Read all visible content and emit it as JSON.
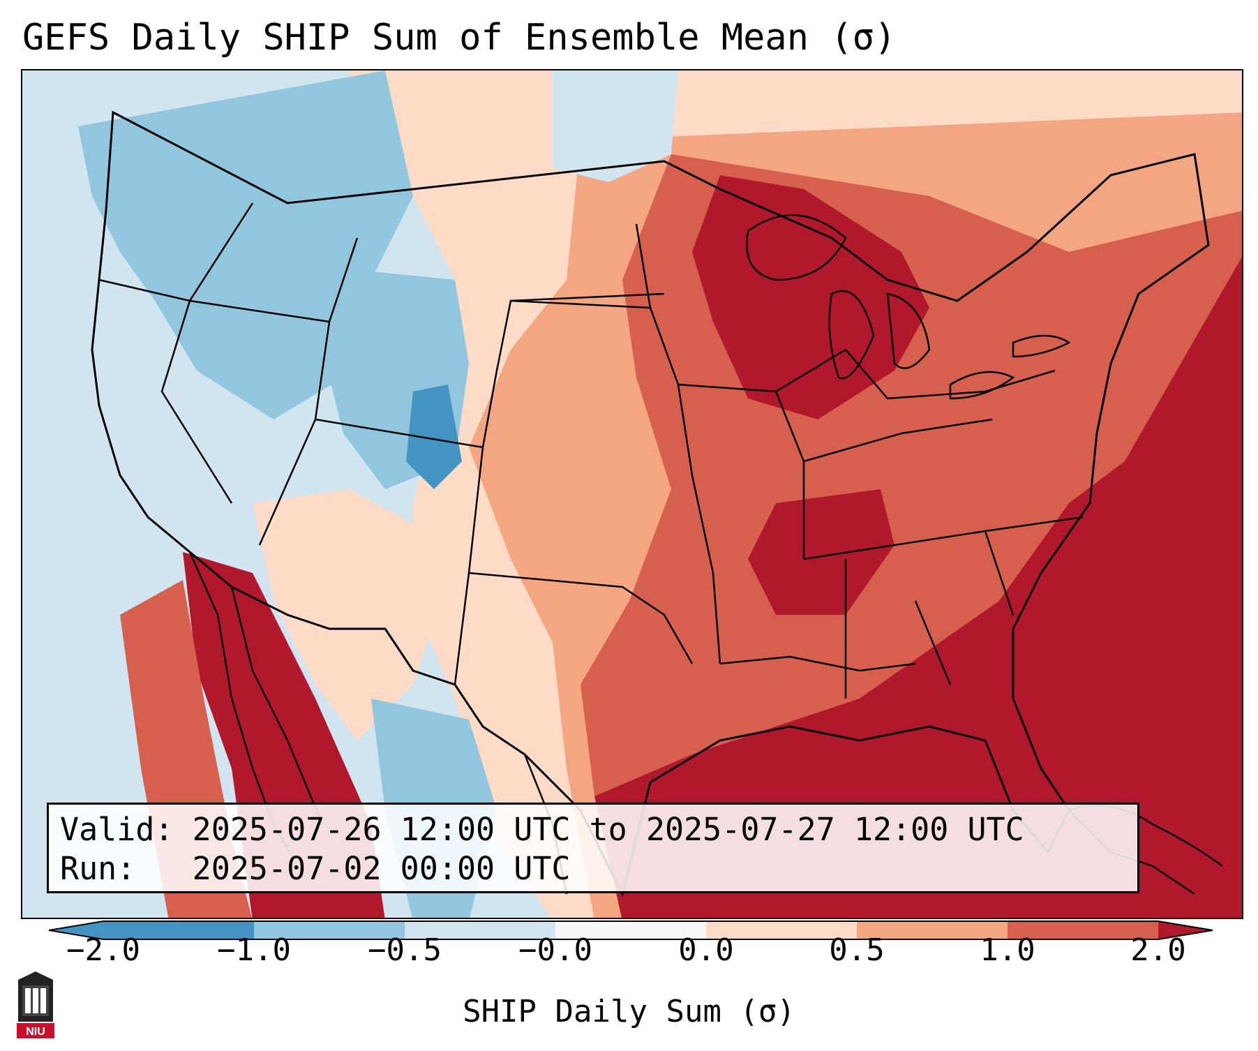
{
  "title": "GEFS Daily SHIP Sum of Ensemble Mean (σ)",
  "info": {
    "valid_label": "Valid:",
    "valid_value": "2025-07-26 12:00 UTC to 2025-07-27 12:00 UTC",
    "run_label": "Run:",
    "run_value": "2025-07-02 00:00 UTC"
  },
  "colorbar": {
    "label": "SHIP Daily Sum (σ)",
    "ticks": [
      "−2.0",
      "−1.0",
      "−0.5",
      "−0.0",
      "0.0",
      "0.5",
      "1.0",
      "2.0"
    ],
    "colors": [
      "#4393c3",
      "#92c5de",
      "#d1e5f0",
      "#f7f7f7",
      "#fddbc7",
      "#f4a582",
      "#d6604d",
      "#b2182b"
    ],
    "extend": "both"
  },
  "logo": {
    "text": "NIU"
  },
  "icons": {
    "university-seal": "NIU seal"
  }
}
